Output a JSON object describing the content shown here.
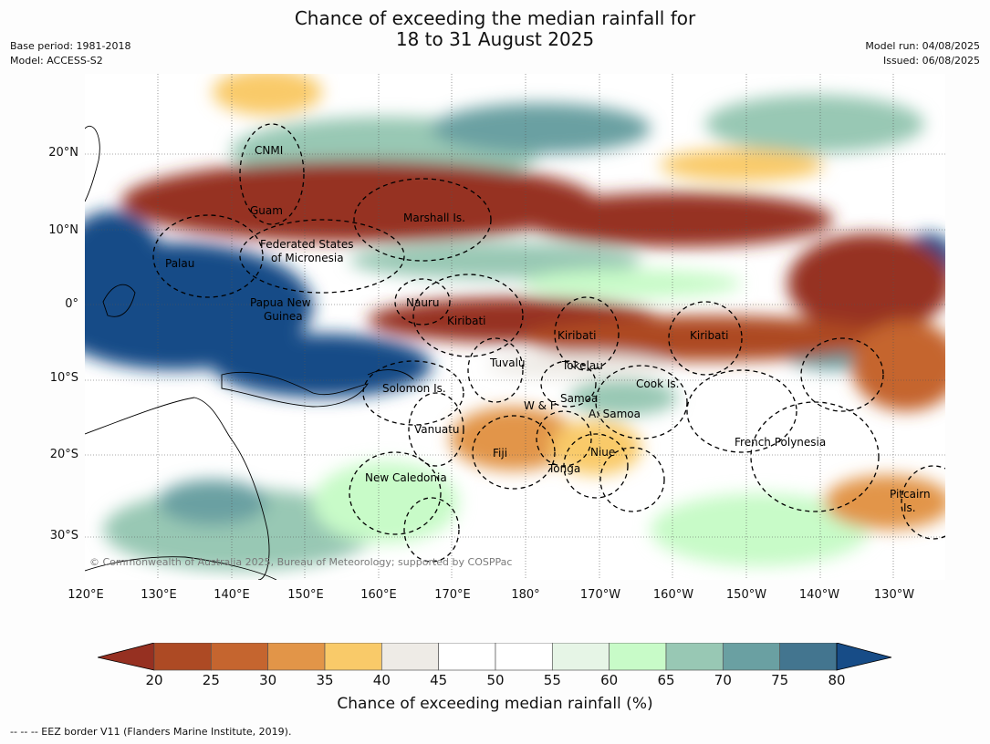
{
  "title": {
    "line1": "Chance of exceeding the median rainfall for",
    "line2": "18 to 31 August 2025"
  },
  "meta_left": {
    "base_period": "Base period: 1981-2018",
    "model": "Model: ACCESS-S2"
  },
  "meta_right": {
    "model_run": "Model run: 04/08/2025",
    "issued": "Issued: 06/08/2025"
  },
  "map": {
    "lat_labels": [
      "20°N",
      "10°N",
      "0°",
      "10°S",
      "20°S",
      "30°S"
    ],
    "lon_labels": [
      "120°E",
      "130°E",
      "140°E",
      "150°E",
      "160°E",
      "170°E",
      "180°",
      "170°W",
      "160°W",
      "150°W",
      "140°W",
      "130°W"
    ],
    "places": {
      "cnmi": "CNMI",
      "guam": "Guam",
      "marshall": "Marshall Is.",
      "fsm1": "Federated States",
      "fsm2": "of Micronesia",
      "palau": "Palau",
      "png1": "Papua New",
      "png2": "Guinea",
      "nauru": "Nauru",
      "kiribati_w": "Kiribati",
      "kiribati_c": "Kiribati",
      "kiribati_e": "Kiribati",
      "tuvalu": "Tuvalu",
      "tokelau": "Tokelau",
      "solomon": "Solomon Is.",
      "cook": "Cook Is.",
      "samoa": "Samoa",
      "wf": "W & F",
      "asamoa": "A. Samoa",
      "vanuatu": "Vanuatu",
      "fiji": "Fiji",
      "niue": "Niue",
      "tonga": "Tonga",
      "frpoly": "French Polynesia",
      "newcal": "New Caledonia",
      "pitcairn1": "Pitcairn",
      "pitcairn2": "Is."
    },
    "copyright": "© Commonwealth of Australia 2025, Bureau of Meteorology; supported by COSPPac"
  },
  "colorbar": {
    "ticks": [
      "20",
      "25",
      "30",
      "35",
      "40",
      "45",
      "50",
      "55",
      "60",
      "65",
      "70",
      "75",
      "80"
    ],
    "colors": [
      "#ad4a24",
      "#c5652f",
      "#e29548",
      "#f9ca69",
      "#eeebe6",
      "#ffffff",
      "#ffffff",
      "#e6f5e6",
      "#c8fbc8",
      "#98c8b4",
      "#6aa0a2",
      "#43758f"
    ],
    "low_color": "#963021",
    "high_color": "#174c87",
    "label": "Chance of exceeding median rainfall (%)"
  },
  "footnote": "--  --  -- EEZ border V11 (Flanders Marine Institute, 2019)."
}
